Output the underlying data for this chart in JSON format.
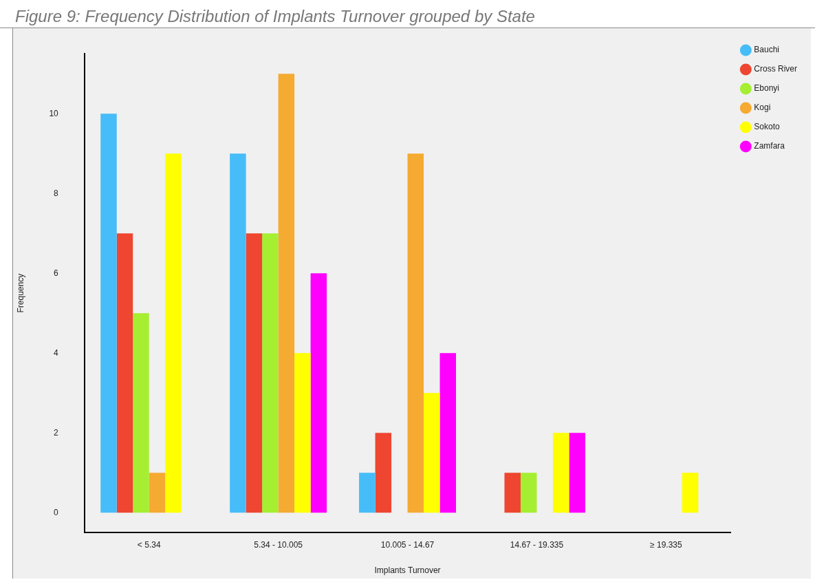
{
  "chart_data": {
    "type": "bar",
    "title": "Figure 9: Frequency Distribution of Implants Turnover grouped by State",
    "xlabel": "Implants Turnover",
    "ylabel": "Frequency",
    "categories": [
      "< 5.34",
      "5.34 - 10.005",
      "10.005 - 14.67",
      "14.67 - 19.335",
      "≥ 19.335"
    ],
    "series": [
      {
        "name": "Bauchi",
        "color": "#46bdf8",
        "values": [
          10,
          9,
          1,
          0,
          0
        ]
      },
      {
        "name": "Cross River",
        "color": "#ee4630",
        "values": [
          7,
          7,
          2,
          1,
          0
        ]
      },
      {
        "name": "Ebonyi",
        "color": "#a6ee32",
        "values": [
          5,
          7,
          0,
          1,
          0
        ]
      },
      {
        "name": "Kogi",
        "color": "#f5aa32",
        "values": [
          1,
          11,
          9,
          0,
          0
        ]
      },
      {
        "name": "Sokoto",
        "color": "#ffff00",
        "values": [
          9,
          4,
          3,
          2,
          1
        ]
      },
      {
        "name": "Zamfara",
        "color": "#ff00ff",
        "values": [
          0,
          6,
          4,
          2,
          0
        ]
      }
    ],
    "ylim": [
      -0.5,
      11.5
    ],
    "yticks": [
      0,
      2,
      4,
      6,
      8,
      10
    ],
    "grid": false,
    "legend": "top right"
  }
}
